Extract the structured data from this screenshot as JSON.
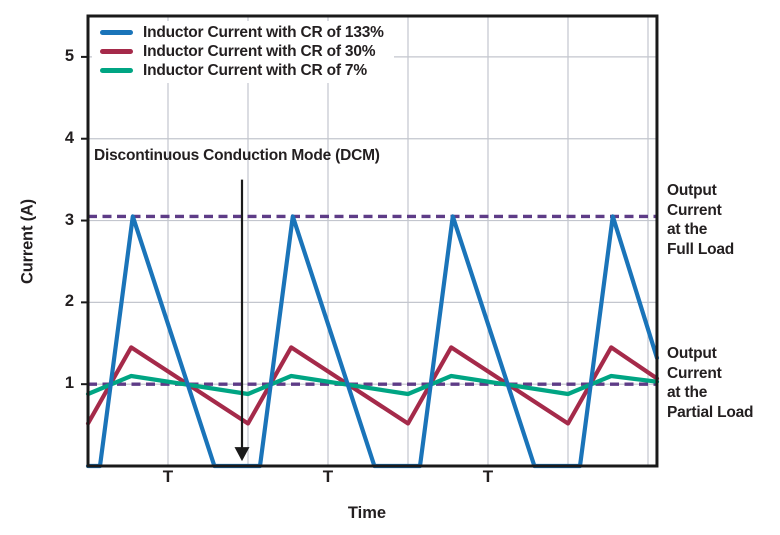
{
  "chart_data": {
    "type": "line",
    "title": "",
    "xlabel": "Time",
    "ylabel": "Current (A)",
    "xlim": [
      0,
      3.556
    ],
    "ylim": [
      0,
      5.5
    ],
    "x_unit": "T (switching period)",
    "y_ticks": [
      1,
      2,
      3,
      4,
      5
    ],
    "x_gridlines": [
      0.5,
      1,
      1.5,
      2,
      2.5,
      3,
      3.5
    ],
    "x_tick_labels": [
      {
        "t": 0.5,
        "label": "T"
      },
      {
        "t": 1.5,
        "label": "T"
      },
      {
        "t": 2.5,
        "label": "T"
      }
    ],
    "grid": true,
    "grid_color": "#c3c6ce",
    "axis_color": "#1a1a1a",
    "legend_position": "upper-left",
    "series": [
      {
        "name": "Inductor Current with CR of 133%",
        "color": "#1a74b9",
        "points": [
          [
            0,
            0
          ],
          [
            0.075,
            0
          ],
          [
            0.28,
            3.05
          ],
          [
            0.79,
            0
          ],
          [
            1.075,
            0
          ],
          [
            1.28,
            3.05
          ],
          [
            1.79,
            0
          ],
          [
            2.075,
            0
          ],
          [
            2.28,
            3.05
          ],
          [
            2.79,
            0
          ],
          [
            3.075,
            0
          ],
          [
            3.28,
            3.05
          ],
          [
            3.556,
            1.32
          ]
        ]
      },
      {
        "name": "Inductor Current with CR of 30%",
        "color": "#a52a4a",
        "points": [
          [
            0,
            0.52
          ],
          [
            0.27,
            1.45
          ],
          [
            1,
            0.52
          ],
          [
            1.27,
            1.45
          ],
          [
            2,
            0.52
          ],
          [
            2.27,
            1.45
          ],
          [
            3,
            0.52
          ],
          [
            3.27,
            1.45
          ],
          [
            3.556,
            1.07
          ]
        ]
      },
      {
        "name": "Inductor Current with CR of 7%",
        "color": "#00a583",
        "points": [
          [
            0,
            0.88
          ],
          [
            0.27,
            1.1
          ],
          [
            1,
            0.88
          ],
          [
            1.27,
            1.1
          ],
          [
            2,
            0.88
          ],
          [
            2.27,
            1.1
          ],
          [
            3,
            0.88
          ],
          [
            3.27,
            1.1
          ],
          [
            3.556,
            1.03
          ]
        ]
      }
    ],
    "reference_lines": [
      {
        "value": 3.05,
        "label": "Output Current at the Full Load",
        "color": "#5e3c87",
        "style": "dashed"
      },
      {
        "value": 1.0,
        "label": "Output Current at the Partial Load",
        "color": "#5e3c87",
        "style": "dashed"
      }
    ],
    "annotation": {
      "text": "Discontinuous Conduction Mode (DCM)",
      "arrow_t": 0.9625,
      "arrow_from_A": 3.5,
      "arrow_to_A": 0.06
    }
  },
  "legend": {
    "items": [
      {
        "label": "Inductor Current with CR of 133%",
        "color": "#1a74b9"
      },
      {
        "label": "Inductor Current with CR of 30%",
        "color": "#a52a4a"
      },
      {
        "label": "Inductor Current with CR of 7%",
        "color": "#00a583"
      }
    ]
  },
  "labels": {
    "y_axis": "Current (A)",
    "x_axis": "Time",
    "dcm": "Discontinuous Conduction Mode (DCM)",
    "full_load": "Output\nCurrent\nat the\nFull Load",
    "partial_load": "Output\nCurrent\nat the\nPartial Load"
  }
}
